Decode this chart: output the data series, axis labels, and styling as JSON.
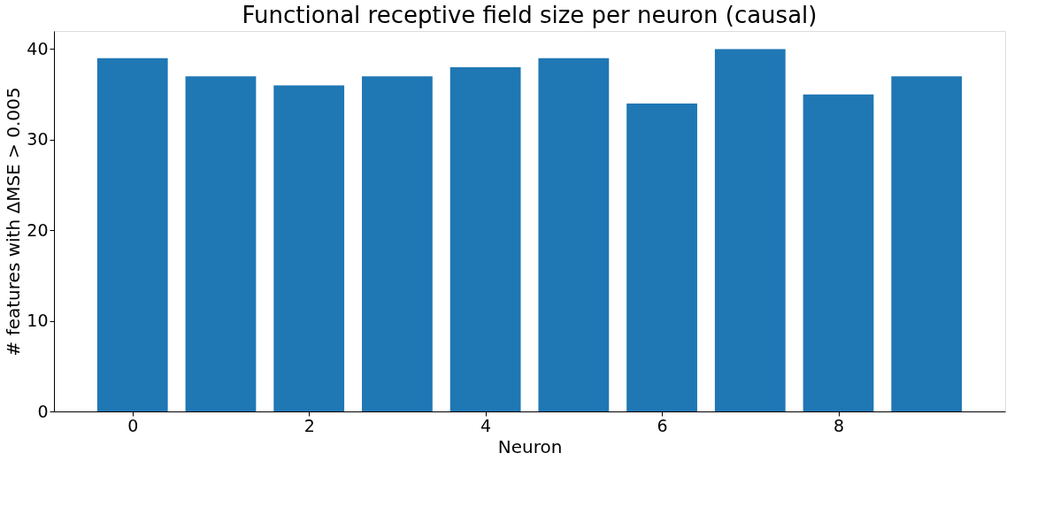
{
  "chart_data": {
    "type": "bar",
    "title": "Functional receptive field size per neuron (causal)",
    "xlabel": "Neuron",
    "ylabel": "# features with ΔMSE > 0.005",
    "x": [
      0,
      1,
      2,
      3,
      4,
      5,
      6,
      7,
      8,
      9
    ],
    "values": [
      39,
      37,
      36,
      37,
      38,
      39,
      34,
      40,
      35,
      37
    ],
    "color": "#1f77b4",
    "xlim": [
      -0.89,
      9.89
    ],
    "xticks": [
      0,
      2,
      4,
      6,
      8
    ],
    "ylim": [
      0,
      42
    ],
    "yticks": [
      0,
      10,
      20,
      30,
      40
    ],
    "grid": false
  }
}
